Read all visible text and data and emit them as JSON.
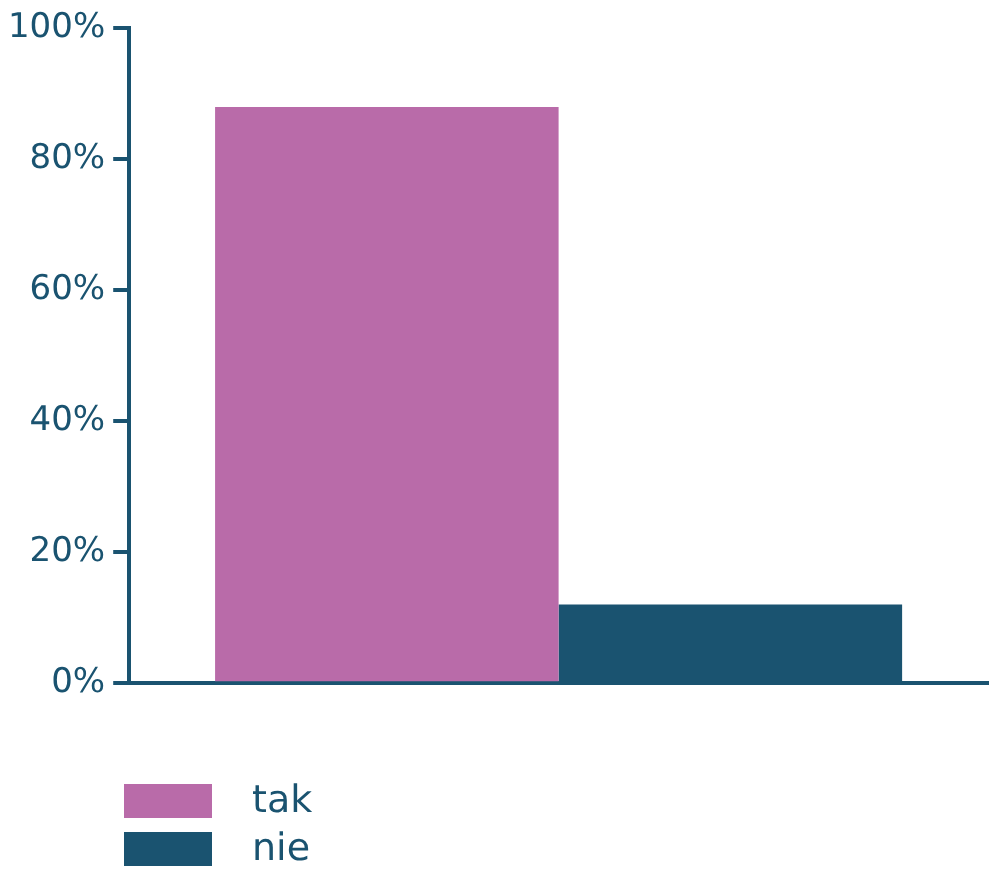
{
  "chart_data": {
    "type": "bar",
    "categories": [
      null
    ],
    "series": [
      {
        "name": "tak",
        "color": "#b96ba9",
        "values": [
          88
        ]
      },
      {
        "name": "nie",
        "color": "#1a5370",
        "values": [
          12
        ]
      }
    ],
    "ylim": [
      0,
      100
    ],
    "yticks": [
      {
        "value": 0,
        "label": "0%"
      },
      {
        "value": 20,
        "label": "20%"
      },
      {
        "value": 40,
        "label": "40%"
      },
      {
        "value": 60,
        "label": "60%"
      },
      {
        "value": 80,
        "label": "80%"
      },
      {
        "value": 100,
        "label": "100%"
      }
    ],
    "grid": false,
    "legend": "bottom left"
  }
}
